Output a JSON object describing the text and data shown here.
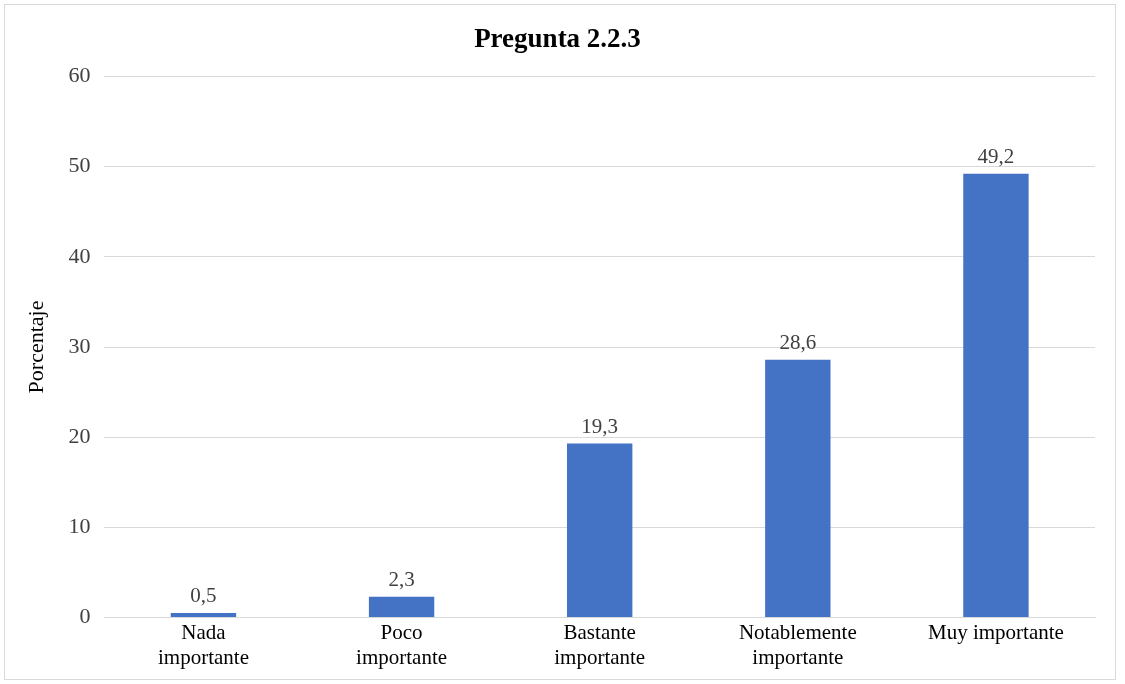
{
  "chart_data": {
    "type": "bar",
    "title": "Pregunta 2.2.3",
    "ylabel": "Porcentaje",
    "categories": [
      "Nada importante",
      "Poco importante",
      "Bastante importante",
      "Notablemente importante",
      "Muy importante"
    ],
    "values": [
      0.5,
      2.3,
      19.3,
      28.6,
      49.2
    ],
    "value_labels": [
      "0,5",
      "2,3",
      "19,3",
      "28,6",
      "49,2"
    ],
    "color": "#4472c4",
    "ylim": [
      0,
      60
    ],
    "yticks": [
      0,
      10,
      20,
      30,
      40,
      50,
      60
    ],
    "grid": "y",
    "legend": false
  }
}
